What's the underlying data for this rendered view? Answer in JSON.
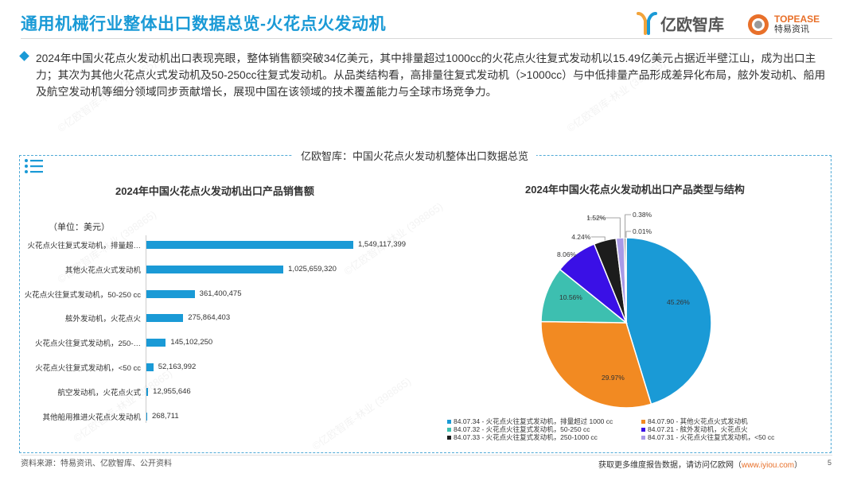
{
  "header": {
    "title": "通用机械行业整体出口数据总览-火花点火发动机",
    "logo1_text": "亿欧智库",
    "logo2_line1": "TOPEASE",
    "logo2_line2": "特易资讯"
  },
  "summary": "2024年中国火花点火发动机出口表现亮眼，整体销售额突破34亿美元，其中排量超过1000cc的火花点火往复式发动机以15.49亿美元占据近半壁江山，成为出口主力；其次为其他火花点火式发动机及50-250cc往复式发动机。从品类结构看，高排量往复式发动机（>1000cc）与中低排量产品形成差异化布局，舷外发动机、船用及航空发动机等细分领域同步贡献增长，展现中国在该领域的技术覆盖能力与全球市场竞争力。",
  "panel": {
    "title": "亿欧智库：中国火花点火发动机整体出口数据总览"
  },
  "watermark": "©亿欧智库-林业 (398865)",
  "chart_data": [
    {
      "type": "bar",
      "orientation": "horizontal",
      "title": "2024年中国火花点火发动机出口产品销售额",
      "unit_label": "（单位：美元）",
      "categories": [
        "火花点火往复式发动机，排量超…",
        "其他火花点火式发动机",
        "火花点火往复式发动机，50-250 cc",
        "舷外发动机，火花点火",
        "火花点火往复式发动机，250-…",
        "火花点火往复式发动机，<50 cc",
        "航空发动机，火花点火式",
        "其他船用推进火花点火发动机"
      ],
      "values": [
        1549117399,
        1025659320,
        361400475,
        275864403,
        145102250,
        52163992,
        12955646,
        268711
      ],
      "value_labels": [
        "1,549,117,399",
        "1,025,659,320",
        "361,400,475",
        "275,864,403",
        "145,102,250",
        "52,163,992",
        "12,955,646",
        "268,711"
      ],
      "color": "#1a9ad6"
    },
    {
      "type": "pie",
      "title": "2024年中国火花点火发动机出口产品类型与结构",
      "slices": [
        {
          "label": "84.07.34 - 火花点火往复式发动机，排量超过 1000 cc",
          "value": 45.26,
          "display": "45.26%",
          "color": "#1a9ad6"
        },
        {
          "label": "84.07.90 - 其他火花点火式发动机",
          "value": 29.97,
          "display": "29.97%",
          "color": "#f28a22"
        },
        {
          "label": "84.07.32 - 火花点火往复式发动机，50-250 cc",
          "value": 10.56,
          "display": "10.56%",
          "color": "#3dbfb0"
        },
        {
          "label": "84.07.21 - 舷外发动机，火花点火",
          "value": 8.06,
          "display": "8.06%",
          "color": "#3a10e6"
        },
        {
          "label": "84.07.33 - 火花点火往复式发动机，250-1000 cc",
          "value": 4.24,
          "display": "4.24%",
          "color": "#1c1c1c"
        },
        {
          "label": "84.07.31 - 火花点火往复式发动机，<50 cc",
          "value": 1.52,
          "display": "1.52%",
          "color": "#a99ae6"
        },
        {
          "label": "",
          "value": 0.38,
          "display": "0.38%",
          "color": "#6a6a6a"
        },
        {
          "label": "",
          "value": 0.01,
          "display": "0.01%",
          "color": "#bbbbbb"
        }
      ]
    }
  ],
  "footer": {
    "source": "资料来源：特易资讯、亿欧智库、公开资料",
    "cta_prefix": "获取更多维度报告数据，请访问亿欧网（",
    "cta_url": "www.iyiou.com",
    "cta_suffix": "）",
    "page": "5"
  }
}
